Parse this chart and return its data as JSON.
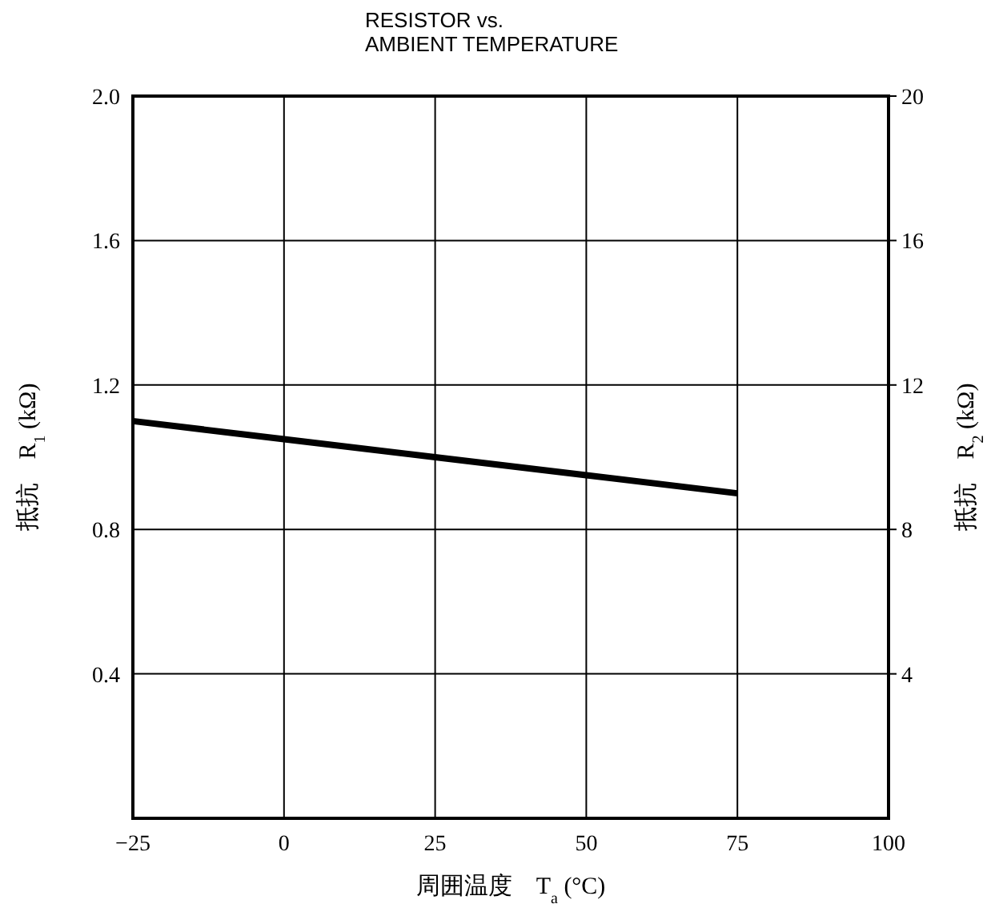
{
  "chart_data": {
    "type": "line",
    "title": "RESISTOR vs.\nAMBIENT TEMPERATURE",
    "xlabel": "周囲温度　T$_{a}$ (°C)",
    "ylabel": "抵抗　R$_{1}$ (kΩ)",
    "y2label": "抵抗　R$_{2}$ (kΩ)",
    "x": [
      -25,
      0,
      25,
      50,
      75
    ],
    "series": [
      {
        "color": "#000000",
        "values": [
          1.1,
          1.05,
          1.0,
          0.95,
          0.9
        ]
      }
    ],
    "xlim": [
      -25,
      100
    ],
    "xticks": [
      {
        "value": -25,
        "label": "−25"
      },
      0,
      25,
      50,
      75,
      100
    ],
    "ylim": [
      0,
      2.0
    ],
    "yticks": [
      0.4,
      0.8,
      1.2,
      1.6,
      {
        "value": 2.0,
        "label": "2.0"
      }
    ],
    "y2lim": [
      0,
      20
    ],
    "y2ticks": [
      4,
      8,
      12,
      16,
      20
    ],
    "grid": true,
    "marker": "none",
    "line_style": "solid"
  }
}
